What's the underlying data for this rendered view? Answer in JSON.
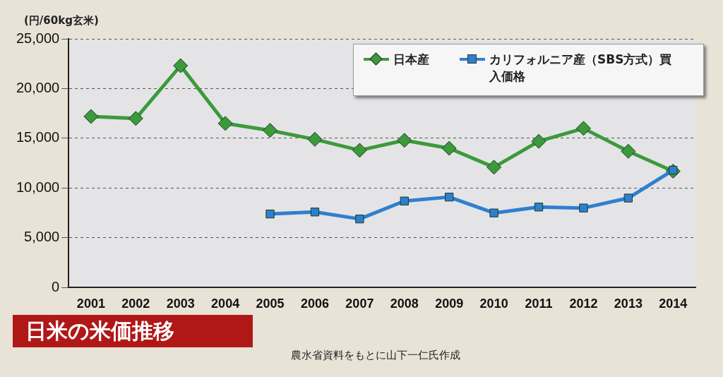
{
  "chart_data": {
    "type": "line",
    "title": "日米の米価推移",
    "ylabel": "(円/60kg玄米)",
    "annotations": [
      "農水省資料をもとに山下一仁氏作成"
    ],
    "categories": [
      "2001",
      "2002",
      "2003",
      "2004",
      "2005",
      "2006",
      "2007",
      "2008",
      "2009",
      "2010",
      "2011",
      "2012",
      "2013",
      "2014"
    ],
    "series": [
      {
        "name": "日本産",
        "color": "#3c9a3c",
        "marker": "diamond",
        "values": [
          17200,
          17000,
          22300,
          16500,
          15800,
          14900,
          13800,
          14800,
          14000,
          12100,
          14700,
          16000,
          13700,
          11700
        ]
      },
      {
        "name": "カリフォルニア産（SBS方式）買入価格",
        "color": "#2f7fd0",
        "marker": "square",
        "values": [
          null,
          null,
          null,
          null,
          7400,
          7600,
          6900,
          8700,
          9100,
          7500,
          8100,
          8000,
          9000,
          11800
        ]
      }
    ],
    "ylim": [
      0,
      25000
    ],
    "yticks": [
      {
        "value": 0,
        "label": "0"
      },
      {
        "value": 5000,
        "label": "5,000"
      },
      {
        "value": 10000,
        "label": "10,000"
      },
      {
        "value": 15000,
        "label": "15,000"
      },
      {
        "value": 20000,
        "label": "20,000"
      },
      {
        "value": 25000,
        "label": "25,000"
      }
    ],
    "grid": "y",
    "line_style": "solid",
    "legend": "top right"
  }
}
